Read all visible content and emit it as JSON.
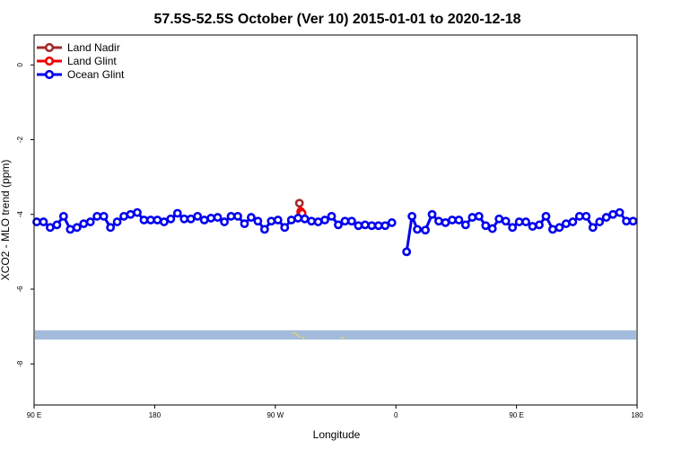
{
  "chart_data": {
    "type": "line",
    "title": "57.5S-52.5S October (Ver 10)   2015-01-01 to 2020-12-18",
    "xlabel": "Longitude",
    "ylabel": "XCO2 - MLO trend (ppm)",
    "xlim": [
      90,
      540
    ],
    "ylim": [
      -9.1,
      0.8
    ],
    "x_ticks": [
      {
        "value": 90,
        "label": "90 E"
      },
      {
        "value": 180,
        "label": "180"
      },
      {
        "value": 270,
        "label": "90 W"
      },
      {
        "value": 360,
        "label": "0"
      },
      {
        "value": 450,
        "label": "90 E"
      },
      {
        "value": 540,
        "label": "180"
      }
    ],
    "y_ticks": [
      {
        "value": 0,
        "label": "0"
      },
      {
        "value": -2,
        "label": "-2"
      },
      {
        "value": -4,
        "label": "-4"
      },
      {
        "value": -6,
        "label": "-6"
      },
      {
        "value": -8,
        "label": "-8"
      }
    ],
    "legend_position": "top-left",
    "series": [
      {
        "name": "Land Nadir",
        "color": "#a52a2a",
        "points": [
          [
            288,
            -3.7
          ],
          [
            289,
            -3.95
          ]
        ]
      },
      {
        "name": "Land Glint",
        "color": "#ee0000",
        "points": [
          [
            289,
            -3.92
          ],
          [
            290,
            -3.97
          ]
        ]
      },
      {
        "name": "Ocean Glint",
        "color": "#0000ee",
        "segments": [
          [
            [
              92,
              -4.2
            ],
            [
              97,
              -4.2
            ],
            [
              102,
              -4.35
            ],
            [
              107,
              -4.28
            ],
            [
              112,
              -4.05
            ],
            [
              117,
              -4.4
            ],
            [
              122,
              -4.35
            ],
            [
              127,
              -4.25
            ],
            [
              132,
              -4.2
            ],
            [
              137,
              -4.05
            ],
            [
              142,
              -4.05
            ],
            [
              147,
              -4.35
            ],
            [
              152,
              -4.2
            ],
            [
              157,
              -4.05
            ],
            [
              162,
              -4.0
            ],
            [
              167,
              -3.95
            ],
            [
              172,
              -4.15
            ],
            [
              177,
              -4.15
            ],
            [
              182,
              -4.15
            ],
            [
              187,
              -4.2
            ],
            [
              192,
              -4.12
            ],
            [
              197,
              -3.97
            ],
            [
              202,
              -4.12
            ],
            [
              207,
              -4.12
            ],
            [
              212,
              -4.05
            ],
            [
              217,
              -4.15
            ],
            [
              222,
              -4.1
            ],
            [
              227,
              -4.08
            ],
            [
              232,
              -4.2
            ],
            [
              237,
              -4.05
            ],
            [
              242,
              -4.05
            ],
            [
              247,
              -4.25
            ],
            [
              252,
              -4.08
            ],
            [
              257,
              -4.18
            ],
            [
              262,
              -4.4
            ],
            [
              267,
              -4.18
            ],
            [
              272,
              -4.15
            ],
            [
              277,
              -4.35
            ],
            [
              282,
              -4.15
            ],
            [
              287,
              -4.1
            ],
            [
              292,
              -4.12
            ],
            [
              297,
              -4.18
            ],
            [
              302,
              -4.2
            ],
            [
              307,
              -4.15
            ],
            [
              312,
              -4.05
            ],
            [
              317,
              -4.28
            ],
            [
              322,
              -4.18
            ],
            [
              327,
              -4.18
            ],
            [
              332,
              -4.3
            ],
            [
              337,
              -4.28
            ],
            [
              342,
              -4.3
            ],
            [
              347,
              -4.3
            ],
            [
              352,
              -4.3
            ],
            [
              357,
              -4.22
            ]
          ],
          [
            [
              368,
              -5.0
            ],
            [
              372,
              -4.05
            ],
            [
              376,
              -4.4
            ],
            [
              382,
              -4.42
            ],
            [
              387,
              -4.0
            ],
            [
              392,
              -4.18
            ],
            [
              397,
              -4.22
            ],
            [
              402,
              -4.15
            ],
            [
              407,
              -4.15
            ],
            [
              412,
              -4.28
            ],
            [
              417,
              -4.08
            ],
            [
              422,
              -4.05
            ],
            [
              427,
              -4.3
            ],
            [
              432,
              -4.38
            ],
            [
              437,
              -4.12
            ],
            [
              442,
              -4.18
            ],
            [
              447,
              -4.35
            ],
            [
              452,
              -4.2
            ],
            [
              457,
              -4.2
            ],
            [
              462,
              -4.32
            ],
            [
              467,
              -4.28
            ],
            [
              472,
              -4.05
            ],
            [
              477,
              -4.4
            ],
            [
              482,
              -4.35
            ],
            [
              487,
              -4.25
            ],
            [
              492,
              -4.2
            ],
            [
              497,
              -4.05
            ],
            [
              502,
              -4.05
            ],
            [
              507,
              -4.35
            ],
            [
              512,
              -4.2
            ],
            [
              517,
              -4.08
            ],
            [
              522,
              -4.0
            ],
            [
              527,
              -3.95
            ],
            [
              532,
              -4.18
            ],
            [
              537,
              -4.18
            ]
          ]
        ]
      }
    ],
    "map_strip": {
      "y_top": -7.1,
      "y_bottom": -7.35,
      "water_color": "#a3bcdb",
      "land_color": "#f2d266",
      "land_marks": [
        [
          284,
          -7.18
        ],
        [
          286,
          -7.22
        ],
        [
          288,
          -7.26
        ],
        [
          291,
          -7.3
        ],
        [
          320,
          -7.3
        ]
      ]
    }
  }
}
